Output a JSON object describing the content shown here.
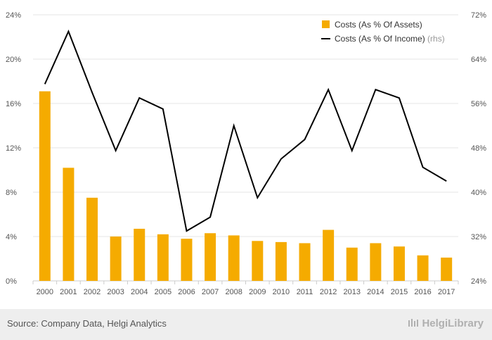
{
  "chart_data": {
    "type": "bar+line",
    "categories": [
      "2000",
      "2001",
      "2002",
      "2003",
      "2004",
      "2005",
      "2006",
      "2007",
      "2008",
      "2009",
      "2010",
      "2011",
      "2012",
      "2013",
      "2014",
      "2015",
      "2016",
      "2017"
    ],
    "series": [
      {
        "name": "Costs (As % Of Assets)",
        "type": "bar",
        "axis": "left",
        "color": "#f5ab00",
        "values": [
          17.1,
          10.2,
          7.5,
          4.0,
          4.7,
          4.2,
          3.8,
          4.3,
          4.1,
          3.6,
          3.5,
          3.4,
          4.6,
          3.0,
          3.4,
          3.1,
          2.3,
          2.1
        ]
      },
      {
        "name": "Costs (As % Of Income)",
        "name_suffix": "(rhs)",
        "type": "line",
        "axis": "right",
        "color": "#000000",
        "values": [
          59.5,
          69.0,
          58.0,
          47.5,
          57.0,
          55.0,
          33.0,
          35.5,
          52.0,
          39.0,
          46.0,
          49.5,
          58.5,
          47.5,
          58.5,
          57.0,
          44.5,
          42.0
        ]
      }
    ],
    "left_axis": {
      "ylim": [
        0,
        24
      ],
      "ticks": [
        "0%",
        "4%",
        "8%",
        "12%",
        "16%",
        "20%",
        "24%"
      ],
      "tick_values": [
        0,
        4,
        8,
        12,
        16,
        20,
        24
      ]
    },
    "right_axis": {
      "ylim": [
        24,
        72
      ],
      "ticks": [
        "24%",
        "32%",
        "40%",
        "48%",
        "56%",
        "64%",
        "72%"
      ],
      "tick_values": [
        24,
        32,
        40,
        48,
        56,
        64,
        72
      ]
    },
    "grid": true,
    "legend_position": "top-right"
  },
  "footer": {
    "source": "Source: Company Data, Helgi Analytics",
    "brand": "HelgiLibrary"
  }
}
